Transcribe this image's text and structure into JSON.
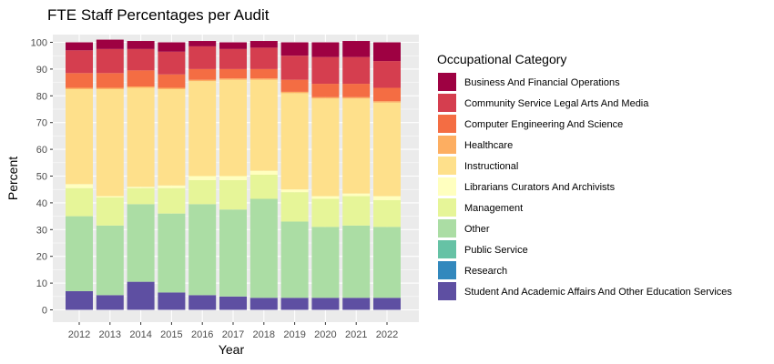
{
  "chart_data": {
    "type": "bar",
    "stacked": true,
    "title": "FTE Staff Percentages per Audit",
    "xlabel": "Year",
    "ylabel": "Percent",
    "ylim": [
      0,
      100
    ],
    "yticks": [
      0,
      10,
      20,
      30,
      40,
      50,
      60,
      70,
      80,
      90,
      100
    ],
    "categories": [
      "2012",
      "2013",
      "2014",
      "2015",
      "2016",
      "2017",
      "2018",
      "2019",
      "2020",
      "2021",
      "2022"
    ],
    "legend_title": "Occupational Category",
    "legend_position": "right",
    "grid": true,
    "series": [
      {
        "name": "Business And Financial Operations",
        "color": "#9E0142",
        "values": [
          3,
          3.5,
          3,
          3.5,
          2,
          2.5,
          2.5,
          5,
          5.5,
          6,
          7
        ]
      },
      {
        "name": "Community Service Legal Arts And Media",
        "color": "#D53E4F",
        "values": [
          8.5,
          9,
          8,
          8.5,
          8.5,
          7.5,
          8,
          9,
          10,
          10,
          10
        ]
      },
      {
        "name": "Computer Engineering And Science",
        "color": "#F46D43",
        "values": [
          5.5,
          5.5,
          6,
          5,
          4,
          3.5,
          3.5,
          4.5,
          5,
          5,
          5
        ]
      },
      {
        "name": "Healthcare",
        "color": "#FDAE61",
        "values": [
          0.5,
          0.5,
          0.5,
          0.5,
          0.5,
          0.5,
          0.5,
          0.5,
          0.5,
          0.5,
          0.5
        ]
      },
      {
        "name": "Instructional",
        "color": "#FEE08B",
        "values": [
          35.5,
          40,
          37,
          36,
          35.5,
          36,
          34,
          36,
          36.5,
          35.5,
          35
        ]
      },
      {
        "name": "Librarians Curators And Archivists",
        "color": "#FFFFBF",
        "values": [
          1.5,
          0.5,
          0.5,
          1,
          1.5,
          1.5,
          1.5,
          1,
          1,
          1,
          1.5
        ]
      },
      {
        "name": "Management",
        "color": "#E6F598",
        "values": [
          10.5,
          10.5,
          6,
          9.5,
          9,
          11,
          9,
          11,
          10.5,
          11,
          10
        ]
      },
      {
        "name": "Other",
        "color": "#ABDDA4",
        "values": [
          28,
          26,
          29,
          29.5,
          34,
          32.5,
          37,
          28.5,
          26.5,
          27,
          26.5
        ]
      },
      {
        "name": "Public Service",
        "color": "#66C2A5",
        "values": [
          0,
          0,
          0,
          0,
          0,
          0,
          0,
          0,
          0,
          0,
          0
        ]
      },
      {
        "name": "Research",
        "color": "#3288BD",
        "values": [
          0,
          0,
          0,
          0,
          0,
          0,
          0,
          0,
          0,
          0,
          0
        ]
      },
      {
        "name": "Student And Academic Affairs And Other Education Services",
        "color": "#5E4FA2",
        "values": [
          7,
          5.5,
          10.5,
          6.5,
          5.5,
          5,
          4.5,
          4.5,
          4.5,
          4.5,
          4.5
        ]
      }
    ]
  }
}
